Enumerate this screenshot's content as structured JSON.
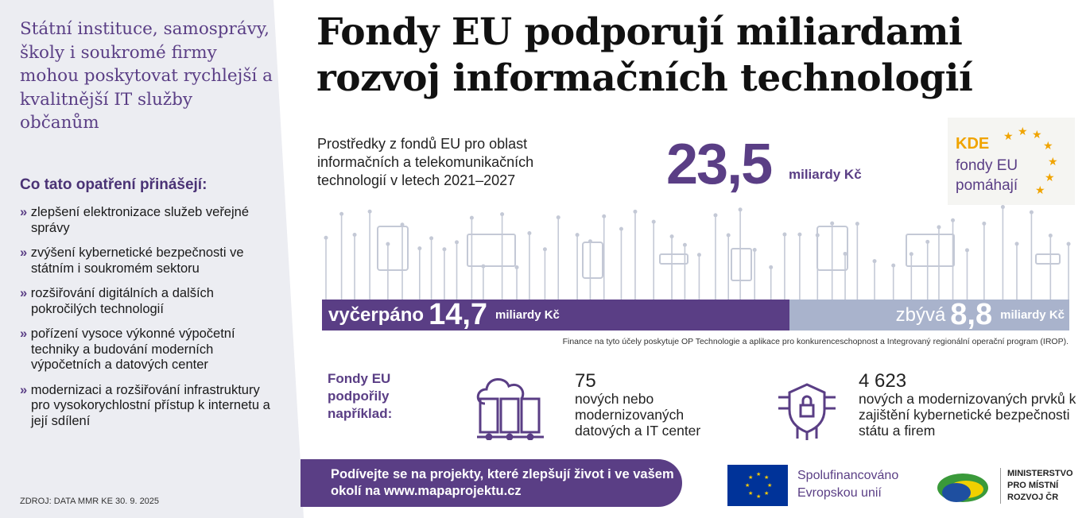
{
  "left_panel": {
    "lead": "Státní instituce, samosprávy, školy i soukromé firmy mohou poskytovat rychlejší a kvalitnější IT služby občanům",
    "subheading": "Co tato opatření přinášejí:",
    "benefits": [
      "zlepšení elektronizace služeb veřejné správy",
      "zvýšení kybernetické bezpečnosti ve státním i soukromém sektoru",
      "rozšiřování digitálních a dalších pokročilých technologií",
      "pořízení vysoce výkonné výpočetní techniky a budování moderních výpočetních a datových center",
      "modernizaci a rozšiřování infrastruktury pro vysokorychlostní přístup k internetu a její sdílení"
    ],
    "source": "ZDROJ: DATA MMR KE 30. 9. 2025"
  },
  "title": "Fondy EU podporují miliardami rozvoj informačních technologií",
  "funding": {
    "description": "Prostředky z fondů EU pro oblast informačních a telekomunikačních technologií  v letech 2021–2027",
    "total": "23,5",
    "unit": "miliardy Kč"
  },
  "logo_kde": {
    "line1": "KDE",
    "line2": "fondy EU",
    "line3": "pomáhají"
  },
  "progress": {
    "spent_label": "vyčerpáno",
    "spent_value": "14,7",
    "remaining_label": "zbývá",
    "remaining_value": "8,8",
    "unit": "miliardy Kč",
    "spent_fraction": 0.626
  },
  "note": "Finance na tyto účely poskytuje OP Technologie a aplikace pro konkurenceschopnost a Integrovaný regionální operační program (IROP).",
  "examples": {
    "label": "Fondy EU podpořily například:",
    "stats": [
      {
        "value": "75",
        "text": "nových nebo modernizovaných datových a IT center",
        "icon": "data-center-icon"
      },
      {
        "value": "4 623",
        "text": "nových a modernizovaných prvků k zajištění kybernetické bezpečnosti státu a firem",
        "icon": "cyber-security-icon"
      }
    ]
  },
  "cta": {
    "text": "Podívejte se na projekty, které zlepšují život i ve vašem okolí na ",
    "link": "www.mapaprojektu.cz"
  },
  "eu_logo": {
    "text": "Spolufinancováno Evropskou unií"
  },
  "mmr_logo": {
    "text": "MINISTERSTVO PRO MÍSTNÍ ROZVOJ ČR"
  },
  "colors": {
    "purple": "#5a3e85",
    "remaining": "#a9b3cc",
    "panel": "#ecedf2",
    "gold": "#f0a400"
  }
}
